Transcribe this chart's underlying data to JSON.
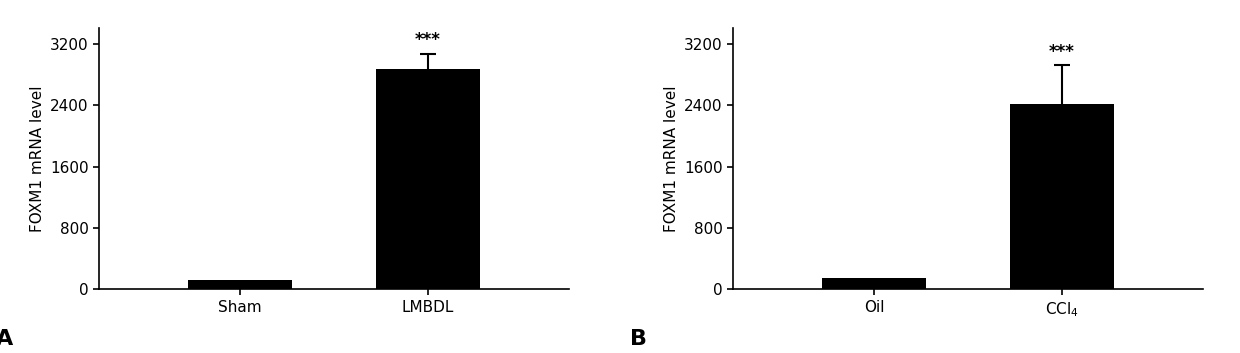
{
  "panel_A": {
    "categories": [
      "Sham",
      "LMBDL"
    ],
    "values": [
      120,
      2870
    ],
    "errors": [
      15,
      200
    ],
    "sig_labels": [
      "",
      "***"
    ],
    "ylabel": "FOXM1 mRNA level",
    "ylim": [
      0,
      3400
    ],
    "yticks": [
      0,
      800,
      1600,
      2400,
      3200
    ],
    "panel_label": "A",
    "bar_color": "#000000",
    "error_color": "#000000"
  },
  "panel_B": {
    "categories": [
      "Oil",
      "CCl$_4$"
    ],
    "values": [
      150,
      2420
    ],
    "errors": [
      20,
      500
    ],
    "sig_labels": [
      "",
      "***"
    ],
    "ylabel": "FOXM1 mRNA level",
    "ylim": [
      0,
      3400
    ],
    "yticks": [
      0,
      800,
      1600,
      2400,
      3200
    ],
    "panel_label": "B",
    "bar_color": "#000000",
    "error_color": "#000000"
  },
  "fig_width": 12.4,
  "fig_height": 3.53,
  "dpi": 100,
  "background_color": "#ffffff",
  "bar_width": 0.55,
  "fontsize_ticks": 11,
  "fontsize_ylabel": 11,
  "fontsize_panel_label": 16,
  "fontsize_sig": 12
}
